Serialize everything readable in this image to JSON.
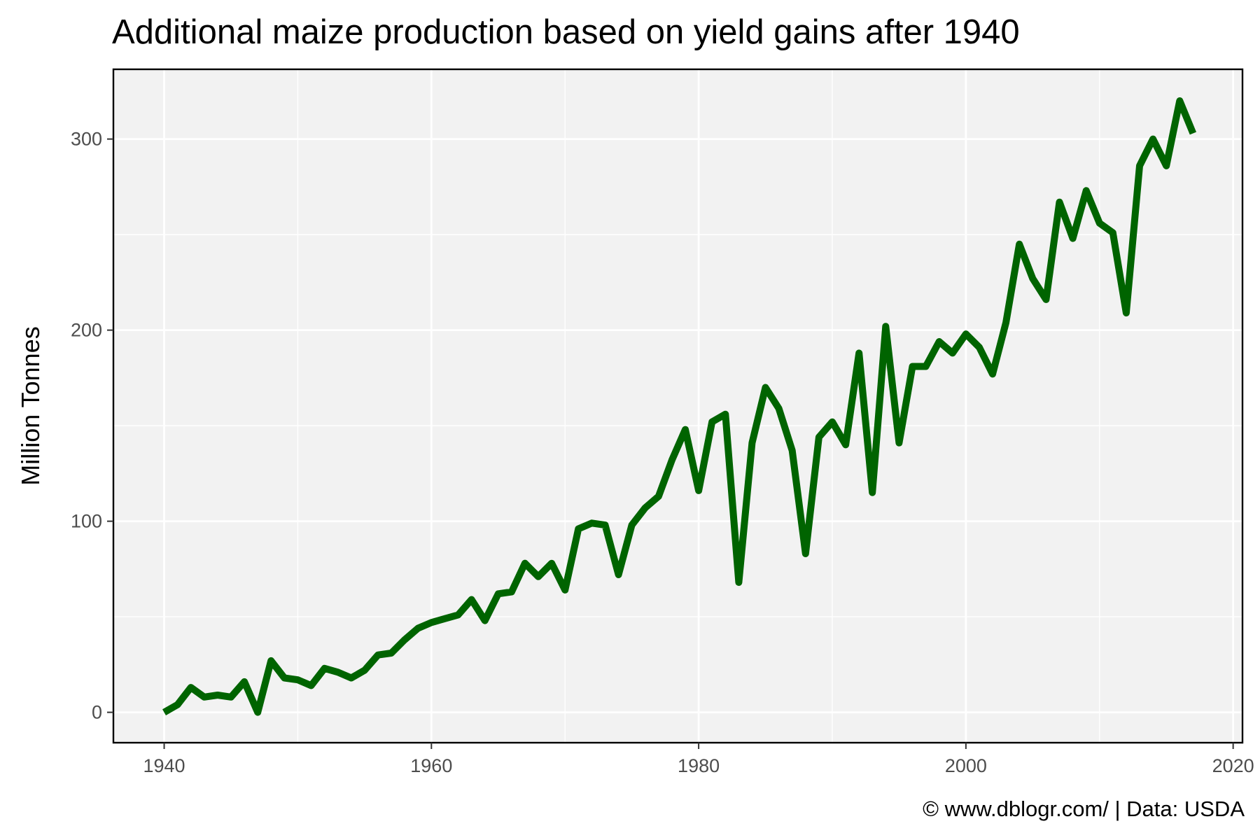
{
  "chart_data": {
    "type": "line",
    "title": "Additional maize production based on yield gains after 1940",
    "xlabel": "",
    "ylabel": "Million Tonnes",
    "caption": "© www.dblogr.com/  |  Data: USDA",
    "xlim": [
      1936.2,
      2020.7
    ],
    "ylim": [
      -15.9,
      336.5
    ],
    "x_ticks": [
      1940,
      1960,
      1980,
      2000,
      2020
    ],
    "y_ticks": [
      0,
      100,
      200,
      300
    ],
    "grid": true,
    "colors": {
      "line": "#006400",
      "panel": "#f2f2f2",
      "grid": "#ffffff",
      "border": "#000000",
      "tick_text": "#4d4d4d"
    },
    "series": [
      {
        "x": [
          1940,
          1941,
          1942,
          1943,
          1944,
          1945,
          1946,
          1947,
          1948,
          1949,
          1950,
          1951,
          1952,
          1953,
          1954,
          1955,
          1956,
          1957,
          1958,
          1959,
          1960,
          1961,
          1962,
          1963,
          1964,
          1965,
          1966,
          1967,
          1968,
          1969,
          1970,
          1971,
          1972,
          1973,
          1974,
          1975,
          1976,
          1977,
          1978,
          1979,
          1980,
          1981,
          1982,
          1983,
          1984,
          1985,
          1986,
          1987,
          1988,
          1989,
          1990,
          1991,
          1992,
          1993,
          1994,
          1995,
          1996,
          1997,
          1998,
          1999,
          2000,
          2001,
          2002,
          2003,
          2004,
          2005,
          2006,
          2007,
          2008,
          2009,
          2010,
          2011,
          2012,
          2013,
          2014,
          2015,
          2016,
          2017
        ],
        "values": [
          0,
          4,
          13,
          8,
          9,
          8,
          16,
          0,
          27,
          18,
          17,
          14,
          23,
          21,
          18,
          22,
          30,
          31,
          38,
          44,
          47,
          49,
          51,
          59,
          48,
          62,
          63,
          78,
          71,
          78,
          64,
          96,
          99,
          98,
          72,
          98,
          107,
          113,
          132,
          148,
          116,
          152,
          156,
          68,
          141,
          170,
          159,
          137,
          83,
          144,
          152,
          140,
          188,
          115,
          202,
          141,
          181,
          181,
          194,
          188,
          198,
          191,
          177,
          204,
          245,
          227,
          216,
          267,
          248,
          273,
          256,
          251,
          209,
          286,
          300,
          286,
          320,
          303
        ]
      }
    ]
  }
}
